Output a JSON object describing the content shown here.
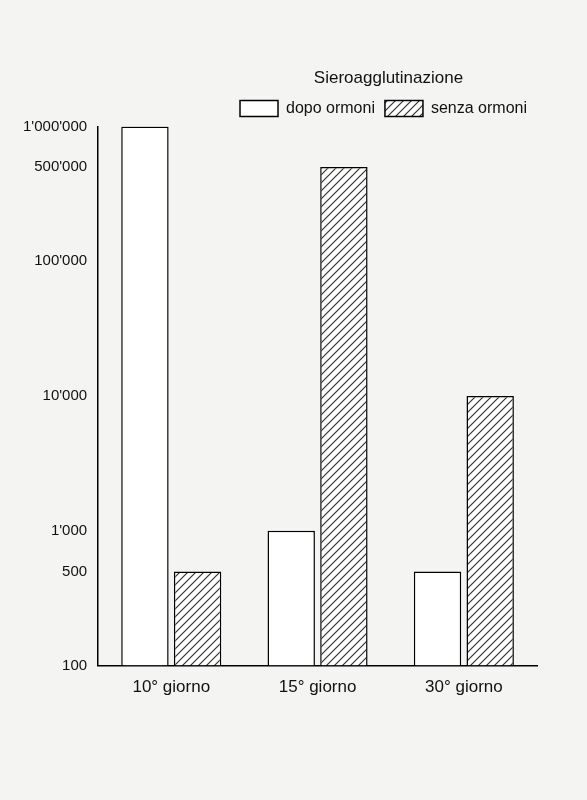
{
  "chart_data": {
    "type": "bar",
    "title": "Sieroagglutinazione",
    "categories": [
      "10° giorno",
      "15° giorno",
      "30° giorno"
    ],
    "series": [
      {
        "name": "dopo ormoni",
        "color": "#ffffff",
        "values": [
          1000000,
          1000,
          500
        ]
      },
      {
        "name": "senza ormoni",
        "color": "#333333",
        "values": [
          500,
          500000,
          10000
        ]
      }
    ],
    "log": "y",
    "ylim": [
      100,
      1000000
    ],
    "yticks": [
      {
        "value": 100,
        "label": "100"
      },
      {
        "value": 500,
        "label": "500"
      },
      {
        "value": 1000,
        "label": "1'000"
      },
      {
        "value": 10000,
        "label": "10'000"
      },
      {
        "value": 100000,
        "label": "100'000"
      },
      {
        "value": 500000,
        "label": "500'000"
      },
      {
        "value": 1000000,
        "label": "1'000'000"
      }
    ],
    "grid": false,
    "legend": "top-right"
  }
}
